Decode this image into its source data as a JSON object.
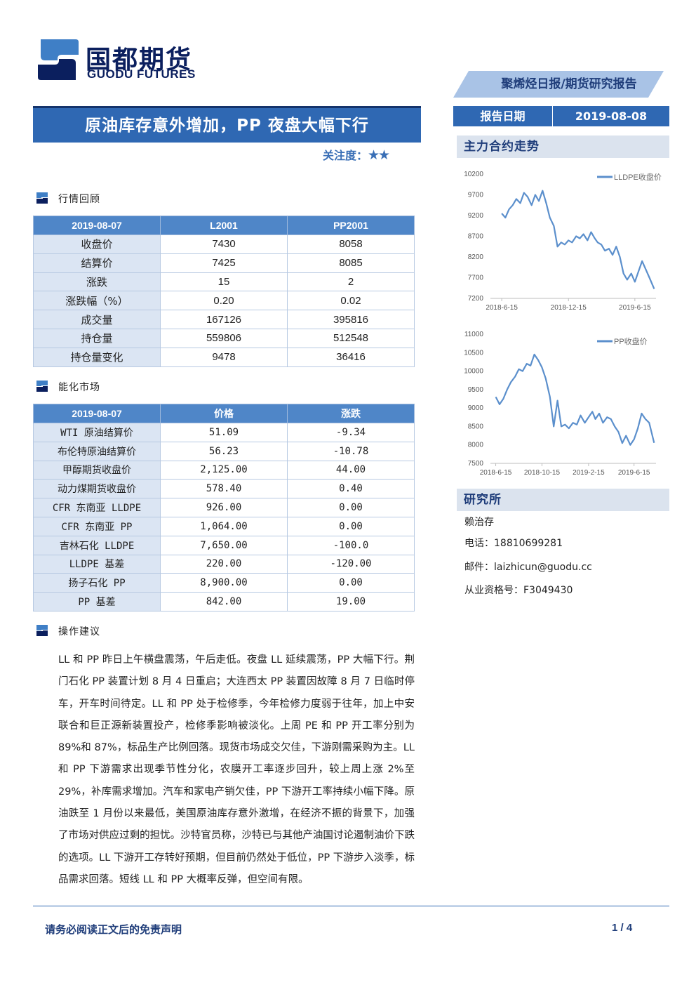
{
  "company": {
    "name_cn": "国都期货",
    "name_en": "GUODU FUTURES"
  },
  "report_type": "聚烯烃日报/期货研究报告",
  "title": "原油库存意外增加，PP 夜盘大幅下行",
  "attention": {
    "label": "关注度：",
    "stars": "★★"
  },
  "report_date": {
    "label": "报告日期",
    "value": "2019-08-08"
  },
  "sections": {
    "market_review": "行情回顾",
    "energy_market": "能化市场",
    "advice": "操作建议"
  },
  "market_table": {
    "headers": [
      "2019-08-07",
      "L2001",
      "PP2001"
    ],
    "rows": [
      [
        "收盘价",
        "7430",
        "8058"
      ],
      [
        "结算价",
        "7425",
        "8085"
      ],
      [
        "涨跌",
        "15",
        "2"
      ],
      [
        "涨跌幅（%）",
        "0.20",
        "0.02"
      ],
      [
        "成交量",
        "167126",
        "395816"
      ],
      [
        "持仓量",
        "559806",
        "512548"
      ],
      [
        "持仓量变化",
        "9478",
        "36416"
      ]
    ]
  },
  "energy_table": {
    "headers": [
      "2019-08-07",
      "价格",
      "涨跌"
    ],
    "rows": [
      [
        "WTI 原油结算价",
        "51.09",
        "-9.34"
      ],
      [
        "布伦特原油结算价",
        "56.23",
        "-10.78"
      ],
      [
        "甲醇期货收盘价",
        "2,125.00",
        "44.00"
      ],
      [
        "动力煤期货收盘价",
        "578.40",
        "0.40"
      ],
      [
        "CFR 东南亚 LLDPE",
        "926.00",
        "0.00"
      ],
      [
        "CFR 东南亚 PP",
        "1,064.00",
        "0.00"
      ],
      [
        "吉林石化 LLDPE",
        "7,650.00",
        "-100.0"
      ],
      [
        "LLDPE 基差",
        "220.00",
        "-120.00"
      ],
      [
        "扬子石化 PP",
        "8,900.00",
        "0.00"
      ],
      [
        "PP 基差",
        "842.00",
        "19.00"
      ]
    ]
  },
  "advice_text": "LL 和 PP 昨日上午横盘震荡，午后走低。夜盘 LL 延续震荡，PP 大幅下行。荆门石化 PP 装置计划 8 月 4 日重启；大连西太 PP 装置因故障 8 月 7 日临时停车，开车时间待定。LL 和 PP 处于检修季，今年检修力度弱于往年，加上中安联合和巨正源新装置投产，检修季影响被淡化。上周 PE 和 PP 开工率分别为 89%和 87%，标品生产比例回落。现货市场成交欠佳，下游刚需采购为主。LL 和 PP 下游需求出现季节性分化，农膜开工率逐步回升，较上周上涨 2%至 29%，补库需求增加。汽车和家电产销欠佳，PP 下游开工率持续小幅下降。原油跌至 1 月份以来最低，美国原油库存意外激增，在经济不振的背景下，加强了市场对供应过剩的担忧。沙特官员称，沙特已与其他产油国讨论遏制油价下跌的选项。LL 下游开工存转好预期，但目前仍然处于低位，PP 下游步入淡季，标品需求回落。短线 LL 和 PP 大概率反弹，但空间有限。",
  "side": {
    "trend_title": "主力合约走势",
    "research_title": "研究所",
    "analyst": "赖治存",
    "phone": "电话：18810699281",
    "email": "邮件：laizhicun@guodu.cc",
    "license": "从业资格号：F3049430"
  },
  "chart_data": [
    {
      "type": "line",
      "series": [
        {
          "name": "LLDPE收盘价",
          "color": "#5b8fcc"
        }
      ],
      "x_ticks": [
        "2018-6-15",
        "2018-12-15",
        "2019-6-15"
      ],
      "y_ticks": [
        10200,
        9700,
        9200,
        8700,
        8200,
        7700,
        7200
      ],
      "ylim": [
        7200,
        10200
      ],
      "points": [
        [
          "2018-06-15",
          9250
        ],
        [
          "2018-06-25",
          9150
        ],
        [
          "2018-07-05",
          9350
        ],
        [
          "2018-07-15",
          9450
        ],
        [
          "2018-07-25",
          9600
        ],
        [
          "2018-08-05",
          9500
        ],
        [
          "2018-08-15",
          9750
        ],
        [
          "2018-08-25",
          9650
        ],
        [
          "2018-09-05",
          9450
        ],
        [
          "2018-09-15",
          9700
        ],
        [
          "2018-09-25",
          9550
        ],
        [
          "2018-10-05",
          9800
        ],
        [
          "2018-10-15",
          9500
        ],
        [
          "2018-10-25",
          9150
        ],
        [
          "2018-11-05",
          8950
        ],
        [
          "2018-11-15",
          8450
        ],
        [
          "2018-11-25",
          8550
        ],
        [
          "2018-12-05",
          8500
        ],
        [
          "2018-12-15",
          8600
        ],
        [
          "2018-12-25",
          8550
        ],
        [
          "2019-01-05",
          8700
        ],
        [
          "2019-01-15",
          8650
        ],
        [
          "2019-01-25",
          8750
        ],
        [
          "2019-02-05",
          8600
        ],
        [
          "2019-02-15",
          8800
        ],
        [
          "2019-02-25",
          8650
        ],
        [
          "2019-03-05",
          8550
        ],
        [
          "2019-03-15",
          8500
        ],
        [
          "2019-03-25",
          8350
        ],
        [
          "2019-04-05",
          8400
        ],
        [
          "2019-04-15",
          8250
        ],
        [
          "2019-04-25",
          8450
        ],
        [
          "2019-05-05",
          8200
        ],
        [
          "2019-05-15",
          7800
        ],
        [
          "2019-05-25",
          7650
        ],
        [
          "2019-06-05",
          7800
        ],
        [
          "2019-06-15",
          7600
        ],
        [
          "2019-06-25",
          7850
        ],
        [
          "2019-07-05",
          8100
        ],
        [
          "2019-07-15",
          7900
        ],
        [
          "2019-07-25",
          7700
        ],
        [
          "2019-08-07",
          7430
        ]
      ]
    },
    {
      "type": "line",
      "series": [
        {
          "name": "PP收盘价",
          "color": "#5b8fcc"
        }
      ],
      "x_ticks": [
        "2018-6-15",
        "2018-10-15",
        "2019-2-15",
        "2019-6-15"
      ],
      "y_ticks": [
        11000,
        10500,
        10000,
        9500,
        9000,
        8500,
        8000,
        7500
      ],
      "ylim": [
        7500,
        11000
      ],
      "points": [
        [
          "2018-06-15",
          9300
        ],
        [
          "2018-06-25",
          9100
        ],
        [
          "2018-07-05",
          9250
        ],
        [
          "2018-07-15",
          9500
        ],
        [
          "2018-07-25",
          9700
        ],
        [
          "2018-08-05",
          9850
        ],
        [
          "2018-08-15",
          10050
        ],
        [
          "2018-08-25",
          10000
        ],
        [
          "2018-09-05",
          10200
        ],
        [
          "2018-09-15",
          10150
        ],
        [
          "2018-09-25",
          10450
        ],
        [
          "2018-10-05",
          10300
        ],
        [
          "2018-10-15",
          10100
        ],
        [
          "2018-10-25",
          9800
        ],
        [
          "2018-11-05",
          9300
        ],
        [
          "2018-11-15",
          8500
        ],
        [
          "2018-11-25",
          9200
        ],
        [
          "2018-12-05",
          8500
        ],
        [
          "2018-12-15",
          8550
        ],
        [
          "2018-12-25",
          8450
        ],
        [
          "2019-01-05",
          8600
        ],
        [
          "2019-01-15",
          8550
        ],
        [
          "2019-01-25",
          8800
        ],
        [
          "2019-02-05",
          8600
        ],
        [
          "2019-02-15",
          8750
        ],
        [
          "2019-02-25",
          8900
        ],
        [
          "2019-03-05",
          8700
        ],
        [
          "2019-03-15",
          8850
        ],
        [
          "2019-03-25",
          8600
        ],
        [
          "2019-04-05",
          8750
        ],
        [
          "2019-04-15",
          8700
        ],
        [
          "2019-04-25",
          8500
        ],
        [
          "2019-05-05",
          8350
        ],
        [
          "2019-05-15",
          8050
        ],
        [
          "2019-05-25",
          8250
        ],
        [
          "2019-06-05",
          8000
        ],
        [
          "2019-06-15",
          8150
        ],
        [
          "2019-06-25",
          8450
        ],
        [
          "2019-07-05",
          8850
        ],
        [
          "2019-07-15",
          8700
        ],
        [
          "2019-07-25",
          8600
        ],
        [
          "2019-08-07",
          8058
        ]
      ]
    }
  ],
  "footer": {
    "disclaimer": "请务必阅读正文后的免责声明",
    "page": "1 / 4"
  }
}
